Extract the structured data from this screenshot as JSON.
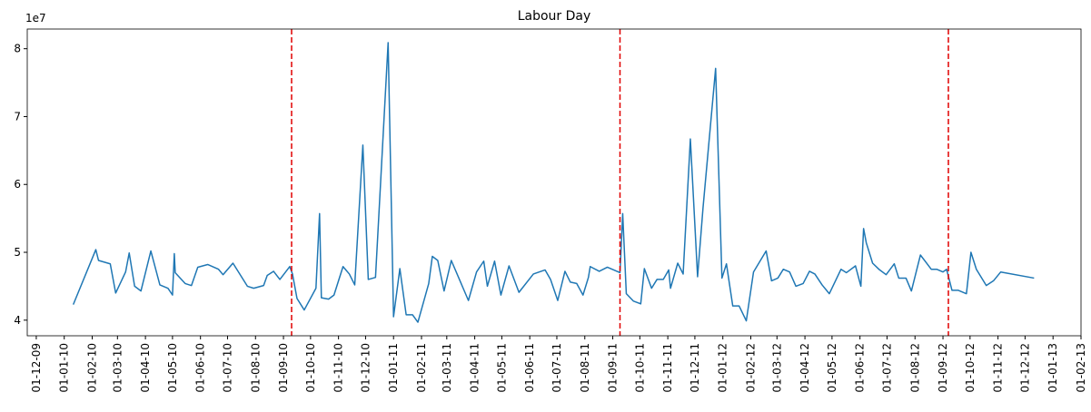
{
  "chart_data": {
    "type": "line",
    "title": "Labour Day",
    "y_offset_label": "1e7",
    "color": "#1f77b4",
    "vline_color": "#e00000",
    "vlines": [
      "2010-09-10",
      "2011-09-09",
      "2012-09-07"
    ],
    "x": [
      "2010-01-11",
      "2010-02-05",
      "2010-02-08",
      "2010-02-21",
      "2010-02-27",
      "2010-03-10",
      "2010-03-14",
      "2010-03-20",
      "2010-03-27",
      "2010-04-07",
      "2010-04-17",
      "2010-04-26",
      "2010-05-01",
      "2010-05-03",
      "2010-05-04",
      "2010-05-15",
      "2010-05-22",
      "2010-05-29",
      "2010-06-09",
      "2010-06-21",
      "2010-06-26",
      "2010-07-07",
      "2010-07-23",
      "2010-07-30",
      "2010-08-10",
      "2010-08-14",
      "2010-08-21",
      "2010-08-28",
      "2010-09-08",
      "2010-09-11",
      "2010-09-16",
      "2010-09-24",
      "2010-10-07",
      "2010-10-11",
      "2010-10-13",
      "2010-10-21",
      "2010-10-27",
      "2010-11-06",
      "2010-11-13",
      "2010-11-19",
      "2010-11-28",
      "2010-12-04",
      "2010-12-12",
      "2010-12-26",
      "2011-01-01",
      "2011-01-08",
      "2011-01-15",
      "2011-01-22",
      "2011-01-28",
      "2011-02-09",
      "2011-02-13",
      "2011-02-19",
      "2011-02-26",
      "2011-03-06",
      "2011-03-25",
      "2011-04-03",
      "2011-04-11",
      "2011-04-15",
      "2011-04-23",
      "2011-04-30",
      "2011-05-09",
      "2011-05-20",
      "2011-06-05",
      "2011-06-18",
      "2011-06-24",
      "2011-07-02",
      "2011-07-10",
      "2011-07-16",
      "2011-07-23",
      "2011-07-30",
      "2011-08-05",
      "2011-08-07",
      "2011-08-17",
      "2011-08-26",
      "2011-09-09",
      "2011-09-12",
      "2011-09-16",
      "2011-09-24",
      "2011-10-02",
      "2011-10-06",
      "2011-10-14",
      "2011-10-20",
      "2011-10-27",
      "2011-11-02",
      "2011-11-04",
      "2011-11-12",
      "2011-11-18",
      "2011-11-26",
      "2011-12-04",
      "2011-12-10",
      "2011-12-24",
      "2011-12-31",
      "2012-01-05",
      "2012-01-12",
      "2012-01-19",
      "2012-01-27",
      "2012-02-04",
      "2012-02-18",
      "2012-02-24",
      "2012-03-02",
      "2012-03-08",
      "2012-03-15",
      "2012-03-22",
      "2012-03-30",
      "2012-04-06",
      "2012-04-12",
      "2012-04-20",
      "2012-04-28",
      "2012-05-11",
      "2012-05-17",
      "2012-05-27",
      "2012-06-02",
      "2012-06-05",
      "2012-06-08",
      "2012-06-15",
      "2012-06-22",
      "2012-06-30",
      "2012-07-09",
      "2012-07-14",
      "2012-07-22",
      "2012-07-28",
      "2012-08-07",
      "2012-08-19",
      "2012-08-25",
      "2012-09-01",
      "2012-09-05",
      "2012-09-11",
      "2012-09-18",
      "2012-09-27",
      "2012-10-02",
      "2012-10-08",
      "2012-10-19",
      "2012-10-27",
      "2012-11-04",
      "2012-12-11"
    ],
    "values": [
      4.23,
      5.04,
      4.88,
      4.83,
      4.4,
      4.71,
      4.99,
      4.5,
      4.43,
      5.02,
      4.52,
      4.47,
      4.37,
      4.98,
      4.7,
      4.54,
      4.51,
      4.78,
      4.82,
      4.75,
      4.67,
      4.84,
      4.5,
      4.47,
      4.51,
      4.66,
      4.72,
      4.6,
      4.79,
      4.68,
      4.32,
      4.15,
      4.47,
      5.57,
      4.33,
      4.31,
      4.37,
      4.79,
      4.68,
      4.52,
      6.58,
      4.6,
      4.63,
      8.09,
      4.05,
      4.76,
      4.08,
      4.08,
      3.97,
      4.54,
      4.94,
      4.88,
      4.43,
      4.88,
      4.29,
      4.71,
      4.87,
      4.5,
      4.87,
      4.37,
      4.8,
      4.41,
      4.68,
      4.74,
      4.6,
      4.29,
      4.72,
      4.56,
      4.54,
      4.37,
      4.63,
      4.79,
      4.72,
      4.78,
      4.7,
      5.57,
      4.39,
      4.28,
      4.24,
      4.76,
      4.47,
      4.6,
      4.6,
      4.74,
      4.47,
      4.84,
      4.68,
      6.67,
      4.64,
      5.65,
      7.71,
      4.62,
      4.83,
      4.21,
      4.21,
      3.99,
      4.71,
      5.02,
      4.58,
      4.62,
      4.75,
      4.71,
      4.5,
      4.54,
      4.72,
      4.68,
      4.52,
      4.39,
      4.75,
      4.7,
      4.8,
      4.5,
      5.35,
      5.14,
      4.84,
      4.75,
      4.67,
      4.83,
      4.62,
      4.62,
      4.43,
      4.96,
      4.75,
      4.75,
      4.71,
      4.75,
      4.44,
      4.44,
      4.39,
      5.0,
      4.75,
      4.51,
      4.58,
      4.71,
      4.62
    ],
    "xlim": [
      "2009-11-21",
      "2013-02-01"
    ],
    "ylim": [
      3.77,
      8.29
    ],
    "yticks": [
      4,
      5,
      6,
      7,
      8
    ],
    "xticks": [
      {
        "value": "2009-12-01",
        "label": "01-12-09"
      },
      {
        "value": "2010-01-01",
        "label": "01-01-10"
      },
      {
        "value": "2010-02-01",
        "label": "01-02-10"
      },
      {
        "value": "2010-03-01",
        "label": "01-03-10"
      },
      {
        "value": "2010-04-01",
        "label": "01-04-10"
      },
      {
        "value": "2010-05-01",
        "label": "01-05-10"
      },
      {
        "value": "2010-06-01",
        "label": "01-06-10"
      },
      {
        "value": "2010-07-01",
        "label": "01-07-10"
      },
      {
        "value": "2010-08-01",
        "label": "01-08-10"
      },
      {
        "value": "2010-09-01",
        "label": "01-09-10"
      },
      {
        "value": "2010-10-01",
        "label": "01-10-10"
      },
      {
        "value": "2010-11-01",
        "label": "01-11-10"
      },
      {
        "value": "2010-12-01",
        "label": "01-12-10"
      },
      {
        "value": "2011-01-01",
        "label": "01-01-11"
      },
      {
        "value": "2011-02-01",
        "label": "01-02-11"
      },
      {
        "value": "2011-03-01",
        "label": "01-03-11"
      },
      {
        "value": "2011-04-01",
        "label": "01-04-11"
      },
      {
        "value": "2011-05-01",
        "label": "01-05-11"
      },
      {
        "value": "2011-06-01",
        "label": "01-06-11"
      },
      {
        "value": "2011-07-01",
        "label": "01-07-11"
      },
      {
        "value": "2011-08-01",
        "label": "01-08-11"
      },
      {
        "value": "2011-09-01",
        "label": "01-09-11"
      },
      {
        "value": "2011-10-01",
        "label": "01-10-11"
      },
      {
        "value": "2011-11-01",
        "label": "01-11-11"
      },
      {
        "value": "2011-12-01",
        "label": "01-12-11"
      },
      {
        "value": "2012-01-01",
        "label": "01-01-12"
      },
      {
        "value": "2012-02-01",
        "label": "01-02-12"
      },
      {
        "value": "2012-03-01",
        "label": "01-03-12"
      },
      {
        "value": "2012-04-01",
        "label": "01-04-12"
      },
      {
        "value": "2012-05-01",
        "label": "01-05-12"
      },
      {
        "value": "2012-06-01",
        "label": "01-06-12"
      },
      {
        "value": "2012-07-01",
        "label": "01-07-12"
      },
      {
        "value": "2012-08-01",
        "label": "01-08-12"
      },
      {
        "value": "2012-09-01",
        "label": "01-09-12"
      },
      {
        "value": "2012-10-01",
        "label": "01-10-12"
      },
      {
        "value": "2012-11-01",
        "label": "01-11-12"
      },
      {
        "value": "2012-12-01",
        "label": "01-12-12"
      },
      {
        "value": "2013-01-01",
        "label": "01-01-13"
      },
      {
        "value": "2013-02-01",
        "label": "01-02-13"
      }
    ]
  }
}
